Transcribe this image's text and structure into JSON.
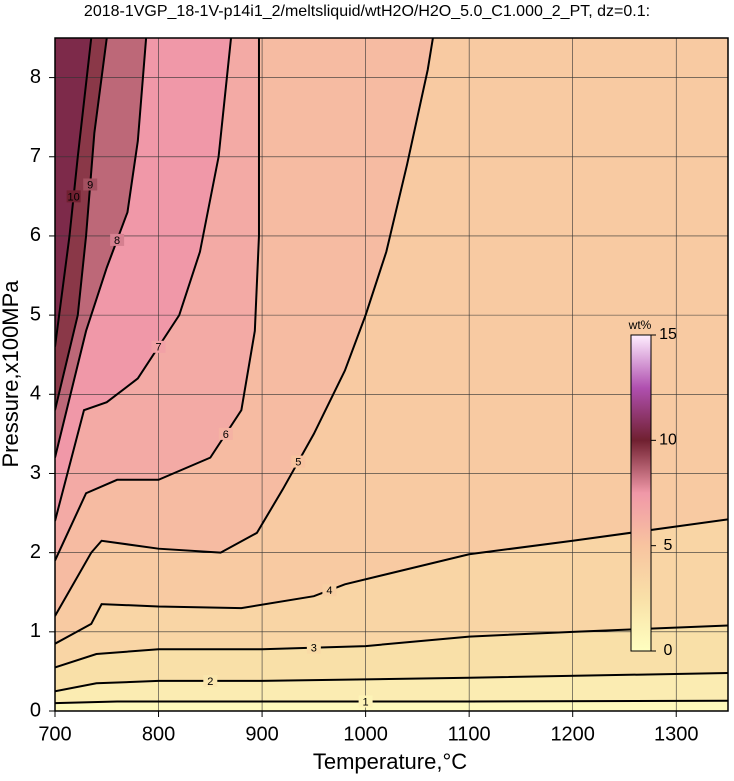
{
  "chart_data": {
    "type": "contour",
    "title": "2018-1VGP_18-1V-p14i1_2/meltsliquid/wtH2O/H2O_5.0_C1.000_2_PT, dz=0.1:",
    "x_label": "Temperature,°C",
    "y_label": "Pressure,x100MPa",
    "xlim": [
      700,
      1350
    ],
    "ylim": [
      0,
      8.5
    ],
    "xticks": [
      700,
      800,
      900,
      1000,
      1100,
      1200,
      1300
    ],
    "yticks": [
      0,
      1,
      2,
      3,
      4,
      5,
      6,
      7,
      8
    ],
    "grid": true,
    "colorbar": {
      "label": "wt%",
      "lim": [
        0,
        15
      ],
      "ticks": [
        0,
        5,
        10,
        15
      ],
      "colors": [
        "#ffffc0",
        "#f9e0a8",
        "#f8c4a0",
        "#f098a8",
        "#702030",
        "#b050b0",
        "#ffeeff"
      ]
    },
    "contours": [
      {
        "level": 1,
        "x": [
          700,
          760,
          900,
          1100,
          1350
        ],
        "y": [
          0.1,
          0.12,
          0.12,
          0.12,
          0.13
        ]
      },
      {
        "level": 2,
        "x": [
          700,
          740,
          800,
          900,
          1100,
          1350
        ],
        "y": [
          0.25,
          0.35,
          0.38,
          0.38,
          0.42,
          0.48
        ]
      },
      {
        "level": 3,
        "x": [
          700,
          740,
          800,
          900,
          1000,
          1100,
          1200,
          1350
        ],
        "y": [
          0.55,
          0.72,
          0.78,
          0.78,
          0.82,
          0.94,
          1.0,
          1.08
        ]
      },
      {
        "level": 4,
        "x": [
          700,
          735,
          745,
          800,
          880,
          950,
          980,
          1100,
          1200,
          1300,
          1350
        ],
        "y": [
          0.85,
          1.1,
          1.35,
          1.32,
          1.3,
          1.45,
          1.6,
          1.98,
          2.15,
          2.33,
          2.42
        ]
      },
      {
        "level": 5,
        "x": [
          700,
          735,
          745,
          800,
          860,
          895,
          920,
          950,
          980,
          1000,
          1020,
          1040,
          1060,
          1065
        ],
        "y": [
          1.2,
          2.0,
          2.15,
          2.05,
          2.0,
          2.25,
          2.8,
          3.5,
          4.3,
          5.0,
          5.8,
          6.9,
          8.1,
          8.5
        ]
      },
      {
        "level": 6,
        "x": [
          700,
          730,
          760,
          800,
          850,
          880,
          893,
          897,
          897
        ],
        "y": [
          1.9,
          2.75,
          2.92,
          2.92,
          3.2,
          3.8,
          4.8,
          6.0,
          8.5
        ]
      },
      {
        "level": 7,
        "x": [
          700,
          728,
          750,
          780,
          820,
          840,
          858,
          870
        ],
        "y": [
          2.4,
          3.8,
          3.9,
          4.2,
          5.0,
          5.8,
          7.0,
          8.5
        ]
      },
      {
        "level": 8,
        "x": [
          700,
          730,
          750,
          770,
          780,
          788
        ],
        "y": [
          3.2,
          4.8,
          5.6,
          6.3,
          7.2,
          8.5
        ]
      },
      {
        "level": 9,
        "x": [
          700,
          722,
          730,
          738,
          750
        ],
        "y": [
          3.8,
          5.0,
          6.0,
          7.3,
          8.5
        ]
      },
      {
        "level": 10,
        "x": [
          700,
          708,
          714,
          722,
          735
        ],
        "y": [
          4.6,
          5.4,
          6.0,
          7.0,
          8.5
        ]
      }
    ]
  }
}
